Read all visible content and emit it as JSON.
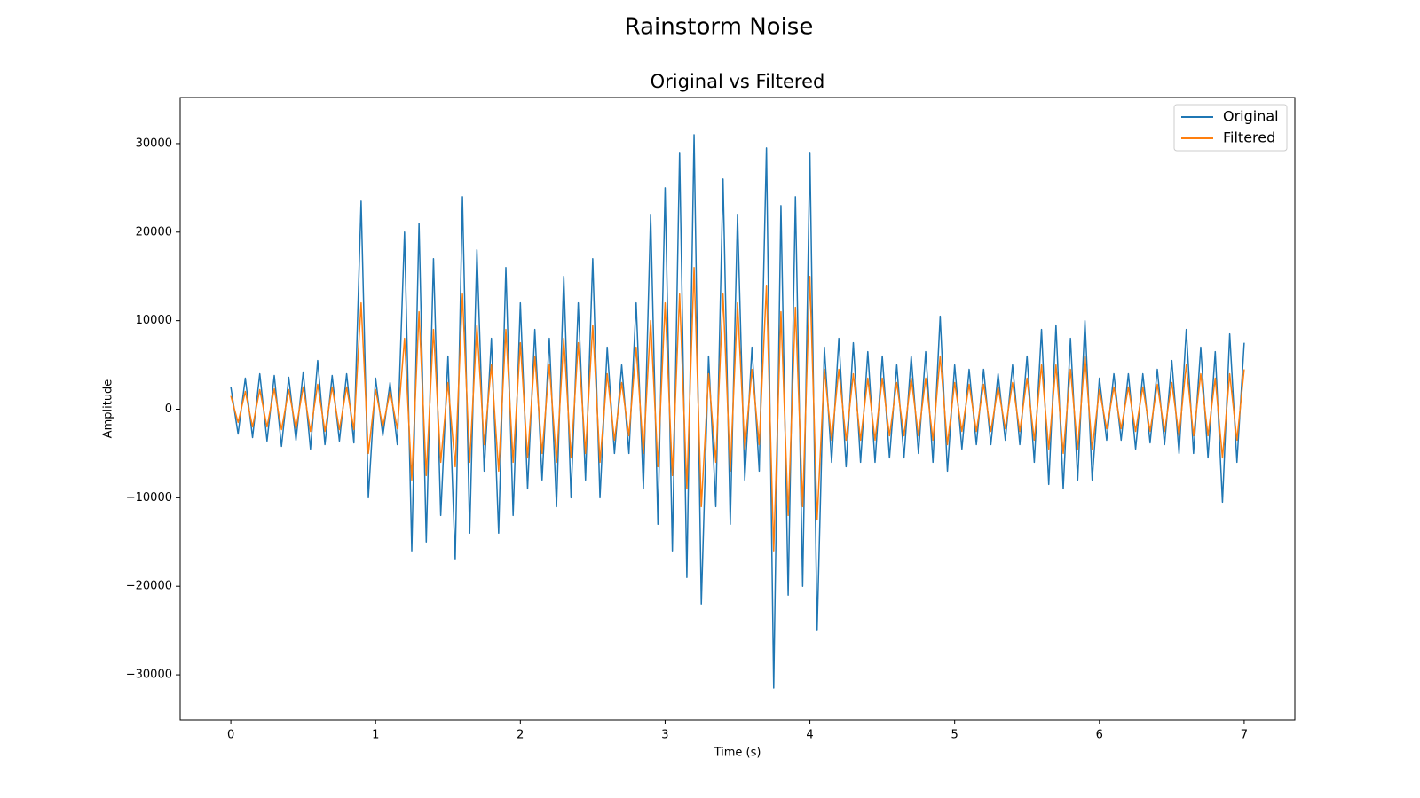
{
  "chart_data": {
    "type": "line",
    "suptitle": "Rainstorm Noise",
    "title": "Original vs Filtered",
    "xlabel": "Time (s)",
    "ylabel": "Amplitude",
    "legend": "upper right",
    "x": [
      0,
      0.05,
      0.1,
      0.15,
      0.2,
      0.25,
      0.3,
      0.35,
      0.4,
      0.45,
      0.5,
      0.55,
      0.6,
      0.65,
      0.7,
      0.75,
      0.8,
      0.85,
      0.9,
      0.95,
      1,
      1.05,
      1.1,
      1.15,
      1.2,
      1.25,
      1.3,
      1.35,
      1.4,
      1.45,
      1.5,
      1.55,
      1.6,
      1.65,
      1.7,
      1.75,
      1.8,
      1.85,
      1.9,
      1.95,
      2,
      2.05,
      2.1,
      2.15,
      2.2,
      2.25,
      2.3,
      2.35,
      2.4,
      2.45,
      2.5,
      2.55,
      2.6,
      2.65,
      2.7,
      2.75,
      2.8,
      2.85,
      2.9,
      2.95,
      3,
      3.05,
      3.1,
      3.15,
      3.2,
      3.25,
      3.3,
      3.35,
      3.4,
      3.45,
      3.5,
      3.55,
      3.6,
      3.65,
      3.7,
      3.75,
      3.8,
      3.85,
      3.9,
      3.95,
      4,
      4.05,
      4.1,
      4.15,
      4.2,
      4.25,
      4.3,
      4.35,
      4.4,
      4.45,
      4.5,
      4.55,
      4.6,
      4.65,
      4.7,
      4.75,
      4.8,
      4.85,
      4.9,
      4.95,
      5,
      5.05,
      5.1,
      5.15,
      5.2,
      5.25,
      5.3,
      5.35,
      5.4,
      5.45,
      5.5,
      5.55,
      5.6,
      5.65,
      5.7,
      5.75,
      5.8,
      5.85,
      5.9,
      5.95,
      6,
      6.05,
      6.1,
      6.15,
      6.2,
      6.25,
      6.3,
      6.35,
      6.4,
      6.45,
      6.5,
      6.55,
      6.6,
      6.65,
      6.7,
      6.75,
      6.8,
      6.85,
      6.9,
      6.95,
      7
    ],
    "series": [
      {
        "name": "Original",
        "color": "#1f77b4",
        "values": [
          2500,
          -2800,
          3500,
          -3200,
          4000,
          -3600,
          3800,
          -4200,
          3600,
          -3500,
          4200,
          -4500,
          5500,
          -4000,
          3800,
          -3600,
          4000,
          -3800,
          23500,
          -10000,
          3500,
          -3000,
          3000,
          -4000,
          20000,
          -16000,
          21000,
          -15000,
          17000,
          -12000,
          6000,
          -17000,
          24000,
          -14000,
          18000,
          -7000,
          8000,
          -14000,
          16000,
          -12000,
          12000,
          -9000,
          9000,
          -8000,
          8000,
          -11000,
          15000,
          -10000,
          12000,
          -8000,
          17000,
          -10000,
          7000,
          -5000,
          5000,
          -5000,
          12000,
          -9000,
          22000,
          -13000,
          25000,
          -16000,
          29000,
          -19000,
          31000,
          -22000,
          6000,
          -11000,
          26000,
          -13000,
          22000,
          -8000,
          7000,
          -7000,
          29500,
          -31500,
          23000,
          -21000,
          24000,
          -20000,
          29000,
          -25000,
          7000,
          -6000,
          8000,
          -6500,
          7500,
          -6000,
          6500,
          -6000,
          6000,
          -5500,
          5000,
          -5500,
          6000,
          -5000,
          6500,
          -6000,
          10500,
          -7000,
          5000,
          -4500,
          4500,
          -4000,
          4500,
          -4000,
          4000,
          -3500,
          5000,
          -4000,
          6000,
          -6000,
          9000,
          -8500,
          9500,
          -9000,
          8000,
          -8000,
          10000,
          -8000,
          3500,
          -3500,
          4000,
          -3500,
          4000,
          -4500,
          4000,
          -3800,
          4500,
          -4000,
          5500,
          -5000,
          9000,
          -5000,
          7000,
          -5500,
          6500,
          -10500,
          8500,
          -6000,
          7500
        ]
      },
      {
        "name": "Filtered",
        "color": "#ff7f0e",
        "values": [
          1500,
          -1500,
          2000,
          -2000,
          2200,
          -2000,
          2300,
          -2300,
          2200,
          -2200,
          2500,
          -2500,
          2800,
          -2500,
          2500,
          -2300,
          2500,
          -2300,
          12000,
          -5000,
          2200,
          -2000,
          2000,
          -2200,
          8000,
          -8000,
          11000,
          -7500,
          9000,
          -6000,
          3000,
          -6500,
          13000,
          -6000,
          9500,
          -4000,
          5000,
          -7000,
          9000,
          -6000,
          7500,
          -5500,
          6000,
          -5000,
          5000,
          -6000,
          8000,
          -5500,
          7500,
          -5000,
          9500,
          -6000,
          4000,
          -3500,
          3000,
          -3000,
          7000,
          -5000,
          10000,
          -6500,
          12000,
          -7500,
          13000,
          -9000,
          16000,
          -11000,
          4000,
          -6000,
          13000,
          -7000,
          12000,
          -4500,
          4500,
          -4000,
          14000,
          -16000,
          11000,
          -12000,
          11500,
          -11000,
          15000,
          -12500,
          4500,
          -3500,
          4500,
          -3500,
          4000,
          -3500,
          3500,
          -3500,
          3500,
          -3000,
          3000,
          -3000,
          3500,
          -3000,
          3500,
          -3500,
          6000,
          -4000,
          3000,
          -2500,
          2800,
          -2500,
          2800,
          -2500,
          2500,
          -2200,
          3000,
          -2500,
          3500,
          -3500,
          5000,
          -4500,
          5000,
          -5000,
          4500,
          -4500,
          6000,
          -4500,
          2200,
          -2200,
          2500,
          -2200,
          2500,
          -2500,
          2500,
          -2500,
          2800,
          -2500,
          3000,
          -3000,
          5000,
          -3000,
          4000,
          -3000,
          3500,
          -5500,
          4000,
          -3500,
          4500
        ]
      }
    ],
    "xlim": [
      -0.35,
      7.35
    ],
    "ylim": [
      -35100,
      35200
    ],
    "xticks": [
      0,
      1,
      2,
      3,
      4,
      5,
      6,
      7
    ],
    "yticks": [
      {
        "value": -30000,
        "label": "−30000"
      },
      {
        "value": -20000,
        "label": "−20000"
      },
      {
        "value": -10000,
        "label": "−10000"
      },
      0,
      10000,
      20000,
      30000
    ]
  }
}
